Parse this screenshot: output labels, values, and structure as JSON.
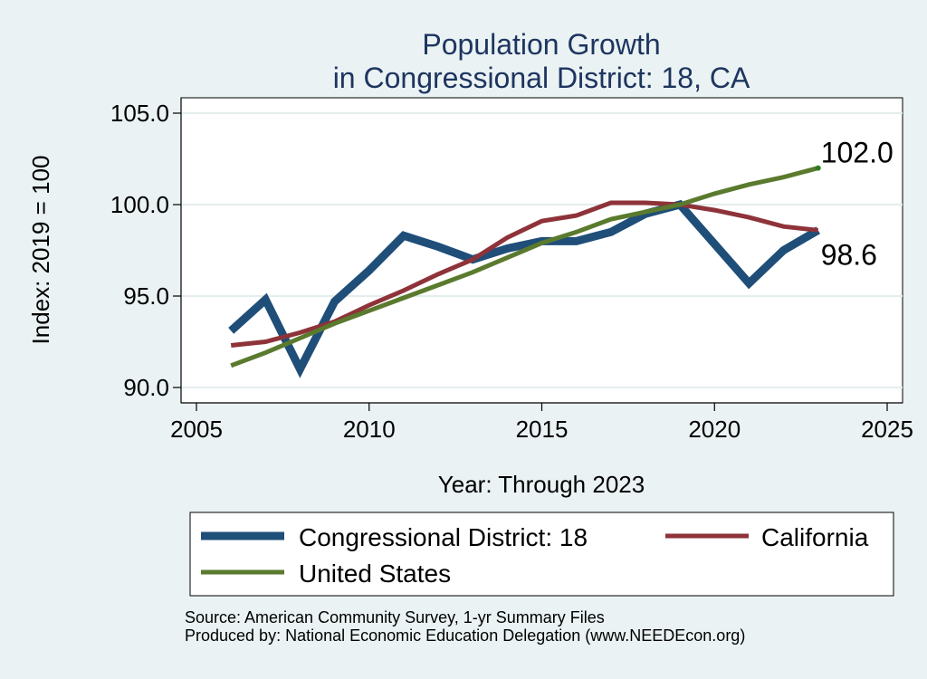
{
  "chart_data": {
    "type": "line",
    "title_line1": "Population Growth",
    "title_line2": "in Congressional District: 18, CA",
    "xlabel": "Year: Through 2023",
    "ylabel": "Index: 2019 = 100",
    "xlim": [
      2005,
      2025
    ],
    "ylim": [
      90,
      105
    ],
    "xticks": [
      "2005",
      "2010",
      "2015",
      "2020",
      "2025"
    ],
    "yticks": [
      "90.0",
      "95.0",
      "100.0",
      "105.0"
    ],
    "grid": true,
    "legend_position": "bottom",
    "series": [
      {
        "name": "Congressional District: 18",
        "color": "#1f4e79",
        "width": 9,
        "x": [
          2006,
          2007,
          2008,
          2009,
          2010,
          2011,
          2012,
          2013,
          2014,
          2015,
          2016,
          2017,
          2018,
          2019,
          2021,
          2022,
          2023
        ],
        "y": [
          93.1,
          94.8,
          91.0,
          94.7,
          96.4,
          98.3,
          97.7,
          97.0,
          97.6,
          98.0,
          98.0,
          98.5,
          99.5,
          100.0,
          95.7,
          97.5,
          98.6
        ]
      },
      {
        "name": "California",
        "color": "#8e3339",
        "width": 5,
        "x": [
          2006,
          2007,
          2008,
          2009,
          2010,
          2011,
          2012,
          2013,
          2014,
          2015,
          2016,
          2017,
          2018,
          2019,
          2020,
          2021,
          2022,
          2023
        ],
        "y": [
          92.3,
          92.5,
          93.0,
          93.6,
          94.5,
          95.3,
          96.2,
          97.0,
          98.2,
          99.1,
          99.4,
          100.1,
          100.1,
          100.0,
          99.7,
          99.3,
          98.8,
          98.6
        ]
      },
      {
        "name": "United States",
        "color": "#5a7a2e",
        "width": 5,
        "x": [
          2006,
          2007,
          2008,
          2009,
          2010,
          2011,
          2012,
          2013,
          2014,
          2015,
          2016,
          2017,
          2018,
          2019,
          2020,
          2021,
          2022,
          2023
        ],
        "y": [
          91.2,
          91.9,
          92.7,
          93.5,
          94.2,
          94.9,
          95.6,
          96.3,
          97.1,
          97.9,
          98.5,
          99.2,
          99.6,
          100.0,
          100.6,
          101.1,
          101.5,
          102.0
        ]
      }
    ],
    "annotations": [
      {
        "text": "102.0",
        "x": 2023,
        "y": 102.0
      },
      {
        "text": "98.6",
        "x": 2023,
        "y": 98.6
      }
    ],
    "end_marker_color": "#2e7d1e"
  },
  "source_lines": [
    "Source: American Community Survey, 1-yr Summary Files",
    "Produced by: National Economic Education Delegation (www.NEEDEcon.org)"
  ]
}
